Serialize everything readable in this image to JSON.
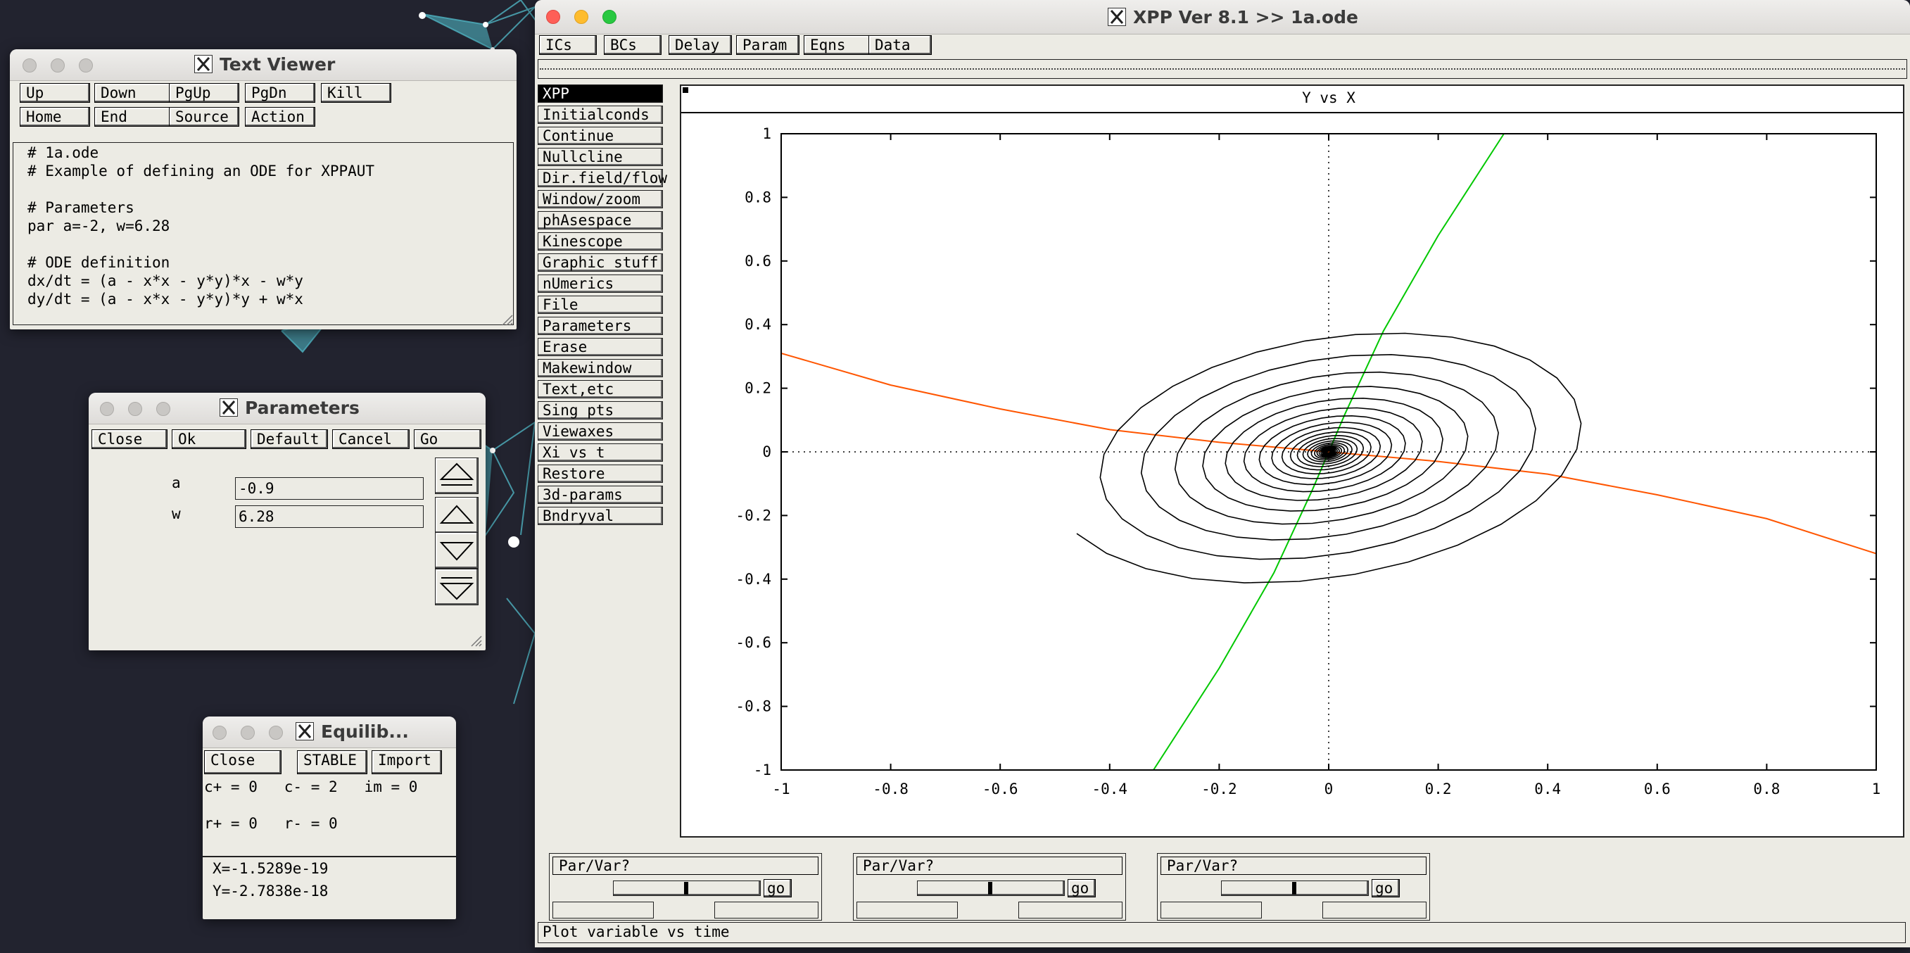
{
  "colors": {
    "desktop": "#22232f",
    "orbit": "#000000",
    "x_nullcline": "#00c800",
    "y_nullcline": "#ff5500"
  },
  "text_viewer": {
    "title": "Text Viewer",
    "buttons": [
      "Up",
      "Down",
      "PgUp",
      "PgDn",
      "Kill",
      "Home",
      "End",
      "Source",
      "Action"
    ],
    "lines": [
      "# 1a.ode",
      "# Example of defining an ODE for XPPAUT",
      "",
      "# Parameters",
      "par a=-2, w=6.28",
      "",
      "# ODE definition",
      "dx/dt = (a - x*x - y*y)*x - w*y",
      "dy/dt = (a - x*x - y*y)*y + w*x"
    ]
  },
  "parameters": {
    "title": "Parameters",
    "buttons": [
      "Close",
      "Ok",
      "Default",
      "Cancel",
      "Go"
    ],
    "fields": [
      {
        "label": "a",
        "value": "-0.9"
      },
      {
        "label": "w",
        "value": "6.28"
      }
    ]
  },
  "equilib": {
    "title": "Equilib...",
    "close": "Close",
    "stable": "STABLE",
    "import": "Import",
    "line1": "c+ = 0   c- = 2   im = 0",
    "line2": "r+ = 0   r- = 0",
    "x": "X=-1.5289e-19",
    "y": "Y=-2.7838e-18"
  },
  "xpp": {
    "title": "XPP Ver 8.1 >> 1a.ode",
    "top_buttons": [
      "ICs",
      "BCs",
      "Delay",
      "Param",
      "Eqns",
      "Data"
    ],
    "menu": [
      "XPP",
      "Initialconds",
      "Continue",
      "Nullcline",
      "Dir.field/flow",
      "Window/zoom",
      "phAsespace",
      "Kinescope",
      "Graphic stuff",
      "nUmerics",
      "File",
      "Parameters",
      "Erase",
      "Makewindow",
      "Text,etc",
      "Sing pts",
      "Viewaxes",
      "Xi vs t",
      "Restore",
      "3d-params",
      "Bndryval"
    ],
    "plot_title": "Y vs X",
    "sliders": [
      {
        "label": "Par/Var?",
        "go": "go"
      },
      {
        "label": "Par/Var?",
        "go": "go"
      },
      {
        "label": "Par/Var?",
        "go": "go"
      }
    ],
    "status": "Plot variable vs time"
  },
  "chart_data": {
    "type": "line",
    "title": "Y vs X",
    "xlim": [
      -1,
      1
    ],
    "ylim": [
      -1,
      1
    ],
    "x_ticks": [
      "-1",
      "-0.8",
      "-0.6",
      "-0.4",
      "-0.2",
      "0",
      "0.2",
      "0.4",
      "0.6",
      "0.8",
      "1"
    ],
    "y_ticks": [
      "1",
      "0.8",
      "0.6",
      "0.4",
      "0.2",
      "0",
      "-0.2",
      "-0.4",
      "-0.6",
      "-0.8",
      "-1"
    ],
    "series": [
      {
        "kind": "spiral_orbit",
        "color": "#000000",
        "center": [
          0,
          0
        ],
        "radius_x_start": 0.5,
        "radius_y_start": 0.6,
        "decay_per_turn": 0.82
      },
      {
        "kind": "x_nullcline",
        "color": "#00c800",
        "points": [
          [
            -0.32,
            -1
          ],
          [
            -0.2,
            -0.68
          ],
          [
            -0.1,
            -0.38
          ],
          [
            -0.03,
            -0.12
          ],
          [
            0,
            0
          ],
          [
            0.03,
            0.12
          ],
          [
            0.1,
            0.38
          ],
          [
            0.2,
            0.68
          ],
          [
            0.32,
            1
          ]
        ]
      },
      {
        "kind": "y_nullcline",
        "color": "#ff5500",
        "points": [
          [
            -1,
            0.31
          ],
          [
            -0.8,
            0.21
          ],
          [
            -0.6,
            0.135
          ],
          [
            -0.4,
            0.07
          ],
          [
            -0.2,
            0.03
          ],
          [
            0,
            0
          ],
          [
            0.2,
            -0.03
          ],
          [
            0.4,
            -0.07
          ],
          [
            0.6,
            -0.135
          ],
          [
            0.8,
            -0.21
          ],
          [
            1,
            -0.32
          ]
        ]
      }
    ]
  }
}
